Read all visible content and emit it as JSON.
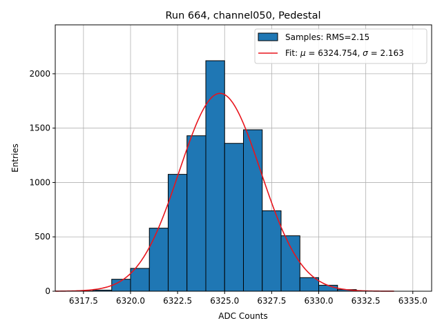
{
  "chart_data": {
    "type": "bar",
    "title": "Run 664, channel050, Pedestal",
    "xlabel": "ADC Counts",
    "ylabel": "Entries",
    "xlim": [
      6316.0,
      6336.0
    ],
    "ylim": [
      0,
      2450
    ],
    "grid": true,
    "legend_position": "top-right",
    "x_ticks": [
      6317.5,
      6320.0,
      6322.5,
      6325.0,
      6327.5,
      6330.0,
      6332.5,
      6335.0
    ],
    "x_tick_labels": [
      "6317.5",
      "6320.0",
      "6322.5",
      "6325.0",
      "6327.5",
      "6330.0",
      "6332.5",
      "6335.0"
    ],
    "y_ticks": [
      0,
      500,
      1000,
      1500,
      2000
    ],
    "y_tick_labels": [
      "0",
      "500",
      "1000",
      "1500",
      "2000"
    ],
    "histogram": {
      "label": "Samples: RMS=2.15",
      "color": "#1f77b4",
      "edge_color": "#000000",
      "bins": [
        {
          "x0": 6317,
          "x1": 6318,
          "value": 2
        },
        {
          "x0": 6318,
          "x1": 6319,
          "value": 10
        },
        {
          "x0": 6319,
          "x1": 6320,
          "value": 110
        },
        {
          "x0": 6320,
          "x1": 6321,
          "value": 210
        },
        {
          "x0": 6321,
          "x1": 6322,
          "value": 580
        },
        {
          "x0": 6322,
          "x1": 6323,
          "value": 1075
        },
        {
          "x0": 6323,
          "x1": 6324,
          "value": 1430
        },
        {
          "x0": 6324,
          "x1": 6325,
          "value": 2120
        },
        {
          "x0": 6325,
          "x1": 6326,
          "value": 1360
        },
        {
          "x0": 6326,
          "x1": 6327,
          "value": 1485
        },
        {
          "x0": 6327,
          "x1": 6328,
          "value": 740
        },
        {
          "x0": 6328,
          "x1": 6329,
          "value": 510
        },
        {
          "x0": 6329,
          "x1": 6330,
          "value": 125
        },
        {
          "x0": 6330,
          "x1": 6331,
          "value": 55
        },
        {
          "x0": 6331,
          "x1": 6332,
          "value": 15
        }
      ]
    },
    "fit": {
      "label_prefix": "Fit: ",
      "mu_symbol": "μ",
      "mu_text": " = 6324.754, ",
      "sigma_symbol": "σ",
      "sigma_text": " = 2.163",
      "color": "#e8141c",
      "mu": 6324.754,
      "sigma": 2.163,
      "amplitude": 1820,
      "x_range": [
        6316.0,
        6334.0
      ]
    }
  }
}
